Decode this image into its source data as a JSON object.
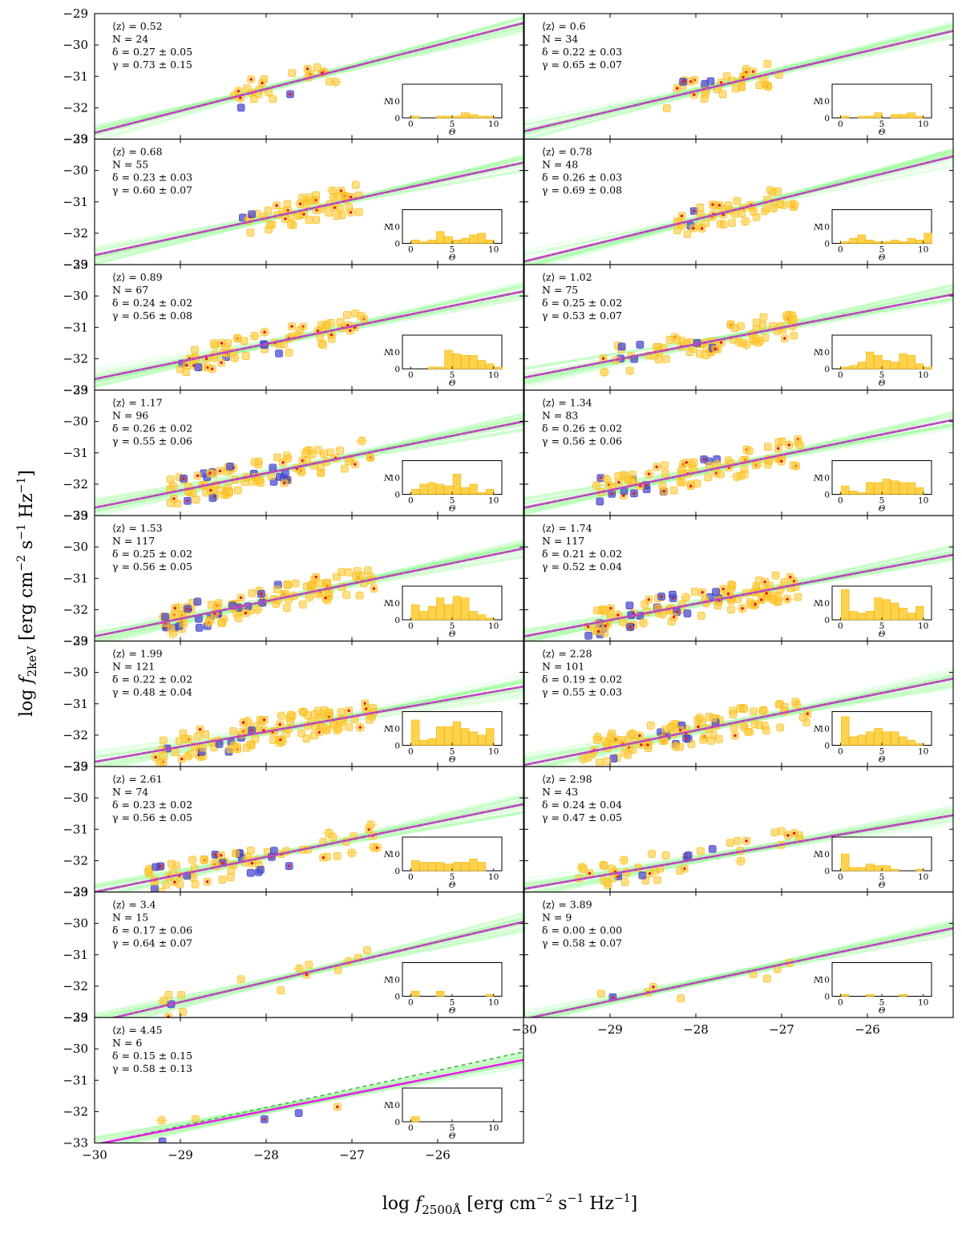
{
  "chart_data": {
    "type": "scatter",
    "ylabel": "log f_2keV [erg cm^-2 s^-1 Hz^-1]",
    "xlabel": "log f_2500Å [erg cm^-2 s^-1 Hz^-1]",
    "xlim": [
      -30,
      -25
    ],
    "ylim": [
      -33,
      -29
    ],
    "xticks": [
      "−30",
      "−29",
      "−28",
      "−27",
      "−26"
    ],
    "yticks": [
      "−29",
      "−30",
      "−31",
      "−32",
      "−33"
    ],
    "inset": {
      "xlabel": "Θ",
      "ylabel": "N",
      "xticks": [
        "0",
        "5",
        "10"
      ],
      "yticks": [
        "0",
        "10"
      ],
      "xlim": [
        -1,
        11
      ],
      "ylim": [
        0,
        20
      ]
    },
    "panels": [
      {
        "z": "⟨z⟩ = 0.52",
        "n": "N = 24",
        "delta": "δ = 0.27 ± 0.05",
        "gamma": "γ = 0.73 ± 0.15",
        "fit": [
          -32.8,
          -29.3
        ],
        "hist": [
          0,
          1,
          0,
          0,
          1,
          1,
          1,
          3,
          2,
          1,
          1,
          0
        ]
      },
      {
        "z": "⟨z⟩ = 0.6",
        "n": "N = 34",
        "delta": "δ = 0.22 ± 0.03",
        "gamma": "γ = 0.65 ± 0.07",
        "fit": [
          -32.75,
          -29.55
        ],
        "hist": [
          0,
          1,
          0,
          1,
          1,
          3,
          0,
          2,
          2,
          3,
          1,
          0
        ]
      },
      {
        "z": "⟨z⟩ = 0.68",
        "n": "N = 55",
        "delta": "δ = 0.23 ± 0.03",
        "gamma": "γ = 0.60 ± 0.07",
        "fit": [
          -32.7,
          -29.75
        ],
        "hist": [
          0,
          2,
          1,
          2,
          7,
          4,
          2,
          3,
          5,
          6,
          2,
          0
        ]
      },
      {
        "z": "⟨z⟩ = 0.78",
        "n": "N = 48",
        "delta": "δ = 0.26 ± 0.03",
        "gamma": "γ = 0.69 ± 0.08",
        "fit": [
          -32.9,
          -29.55
        ],
        "hist": [
          0,
          1,
          3,
          5,
          2,
          1,
          1,
          2,
          1,
          3,
          2,
          6
        ]
      },
      {
        "z": "⟨z⟩ = 0.89",
        "n": "N = 67",
        "delta": "δ = 0.24 ± 0.02",
        "gamma": "γ = 0.56 ± 0.08",
        "fit": [
          -32.65,
          -29.85
        ],
        "hist": [
          0,
          0,
          0,
          1,
          1,
          11,
          9,
          8,
          8,
          5,
          3,
          1
        ]
      },
      {
        "z": "⟨z⟩ = 1.02",
        "n": "N = 75",
        "delta": "δ = 0.25 ± 0.02",
        "gamma": "γ = 0.53 ± 0.07",
        "fit": [
          -32.6,
          -29.95
        ],
        "hist": [
          0,
          1,
          2,
          4,
          10,
          8,
          5,
          4,
          9,
          8,
          3,
          1
        ]
      },
      {
        "z": "⟨z⟩ = 1.17",
        "n": "N = 96",
        "delta": "δ = 0.26 ± 0.02",
        "gamma": "γ = 0.55 ± 0.06",
        "fit": [
          -32.75,
          -30.0
        ],
        "hist": [
          0,
          3,
          6,
          7,
          6,
          5,
          12,
          4,
          6,
          1,
          3,
          0
        ]
      },
      {
        "z": "⟨z⟩ = 1.34",
        "n": "N = 83",
        "delta": "δ = 0.26 ± 0.02",
        "gamma": "γ = 0.56 ± 0.06",
        "fit": [
          -32.75,
          -29.95
        ],
        "hist": [
          0,
          5,
          2,
          1,
          7,
          7,
          9,
          8,
          7,
          7,
          4,
          0
        ]
      },
      {
        "z": "⟨z⟩ = 1.53",
        "n": "N = 117",
        "delta": "δ = 0.25 ± 0.02",
        "gamma": "γ = 0.56 ± 0.05",
        "fit": [
          -32.85,
          -30.05
        ],
        "hist": [
          0,
          9,
          5,
          8,
          13,
          9,
          14,
          13,
          5,
          3,
          1,
          0
        ]
      },
      {
        "z": "⟨z⟩ = 1.74",
        "n": "N = 117",
        "delta": "δ = 0.21 ± 0.02",
        "gamma": "γ = 0.52 ± 0.04",
        "fit": [
          -32.85,
          -30.25
        ],
        "hist": [
          0,
          18,
          5,
          4,
          5,
          13,
          12,
          10,
          7,
          4,
          8,
          0
        ]
      },
      {
        "z": "⟨z⟩ = 1.99",
        "n": "N = 121",
        "delta": "δ = 0.22 ± 0.02",
        "gamma": "γ = 0.48 ± 0.04",
        "fit": [
          -32.85,
          -30.45
        ],
        "hist": [
          0,
          15,
          3,
          4,
          11,
          11,
          14,
          10,
          8,
          6,
          10,
          0
        ]
      },
      {
        "z": "⟨z⟩ = 2.28",
        "n": "N = 101",
        "delta": "δ = 0.19 ± 0.02",
        "gamma": "γ = 0.55 ± 0.03",
        "fit": [
          -32.95,
          -30.2
        ],
        "hist": [
          0,
          17,
          5,
          6,
          8,
          10,
          8,
          8,
          5,
          3,
          1,
          0
        ]
      },
      {
        "z": "⟨z⟩ = 2.61",
        "n": "N = 74",
        "delta": "δ = 0.23 ± 0.02",
        "gamma": "γ = 0.56 ± 0.05",
        "fit": [
          -33.0,
          -30.2
        ],
        "hist": [
          0,
          6,
          5,
          5,
          5,
          4,
          5,
          5,
          7,
          5,
          0,
          0
        ]
      },
      {
        "z": "⟨z⟩ = 2.98",
        "n": "N = 43",
        "delta": "δ = 0.24 ± 0.04",
        "gamma": "γ = 0.47 ± 0.05",
        "fit": [
          -32.9,
          -30.55
        ],
        "hist": [
          0,
          10,
          2,
          2,
          4,
          3,
          3,
          1,
          0,
          0,
          1,
          0
        ]
      },
      {
        "z": "⟨z⟩ = 3.4",
        "n": "N = 15",
        "delta": "δ = 0.17 ± 0.06",
        "gamma": "γ = 0.64 ± 0.07",
        "fit": [
          -33.15,
          -29.95
        ],
        "hist": [
          0,
          3,
          0,
          0,
          3,
          0,
          0,
          0,
          0,
          0,
          1,
          0
        ]
      },
      {
        "z": "⟨z⟩ = 3.89",
        "n": "N = 9",
        "delta": "δ = 0.00 ± 0.00",
        "gamma": "γ = 0.58 ± 0.07",
        "fit": [
          -33.05,
          -30.15
        ],
        "hist": [
          0,
          1,
          0,
          0,
          1,
          0,
          0,
          0,
          1,
          0,
          0,
          0
        ]
      },
      {
        "z": "⟨z⟩ = 4.45",
        "n": "N = 6",
        "delta": "δ = 0.15 ± 0.15",
        "gamma": "γ = 0.58 ± 0.13",
        "fit": [
          -33.05,
          -30.35
        ],
        "fit_dashed": [
          -33.05,
          -30.1
        ],
        "hist": [
          0,
          3,
          0,
          0,
          0,
          0,
          0,
          0,
          0,
          0,
          0,
          0
        ]
      }
    ]
  }
}
